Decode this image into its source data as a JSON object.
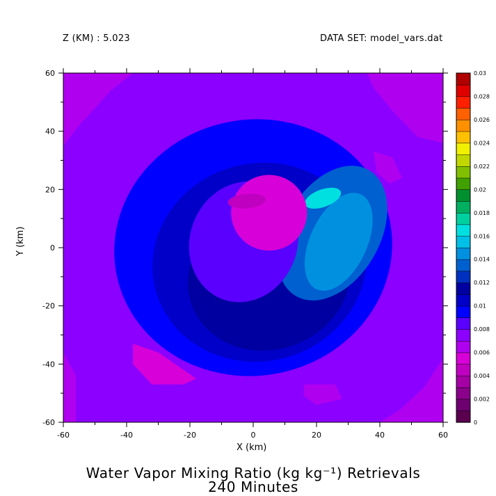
{
  "header": {
    "z_label": "Z (KM) : 5.023",
    "dataset_label": "DATA SET: model_vars.dat"
  },
  "title": {
    "line1": "Water Vapor Mixing Ratio (kg kg⁻¹) Retrievals",
    "line2": "240 Minutes"
  },
  "chart_data": {
    "type": "heatmap",
    "title": "Water Vapor Mixing Ratio (kg kg⁻¹) Retrievals 240 Minutes",
    "xlabel": "X (km)",
    "ylabel": "Y (km)",
    "xlim": [
      -60,
      60
    ],
    "ylim": [
      -60,
      60
    ],
    "x_ticks": [
      "-60",
      "-40",
      "-20",
      "0",
      "20",
      "40",
      "60"
    ],
    "y_ticks": [
      "-60",
      "-40",
      "-20",
      "0",
      "20",
      "40",
      "60"
    ],
    "x_tick_values": [
      -60,
      -40,
      -20,
      0,
      20,
      40,
      60
    ],
    "y_tick_values": [
      -60,
      -40,
      -20,
      0,
      20,
      40,
      60
    ],
    "colorbar": {
      "levels": [
        0,
        0.001,
        0.002,
        0.003,
        0.004,
        0.005,
        0.006,
        0.007,
        0.008,
        0.009,
        0.01,
        0.011,
        0.012,
        0.013,
        0.014,
        0.015,
        0.016,
        0.017,
        0.018,
        0.019,
        0.02,
        0.021,
        0.022,
        0.023,
        0.024,
        0.025,
        0.026,
        0.027,
        0.028,
        0.029,
        0.03
      ],
      "labels": [
        "0",
        "0.002",
        "0.004",
        "0.006",
        "0.008",
        "0.01",
        "0.012",
        "0.014",
        "0.016",
        "0.018",
        "0.02",
        "0.022",
        "0.024",
        "0.026",
        "0.028",
        "0.03"
      ],
      "label_values": [
        0,
        0.002,
        0.004,
        0.006,
        0.008,
        0.01,
        0.012,
        0.014,
        0.016,
        0.018,
        0.02,
        0.022,
        0.024,
        0.026,
        0.028,
        0.03
      ],
      "colors": [
        "#5a004f",
        "#6e0070",
        "#8a008a",
        "#a500a5",
        "#c000c0",
        "#d800d8",
        "#b000f0",
        "#8c00ff",
        "#5a00ff",
        "#0000ff",
        "#0000c8",
        "#0000a0",
        "#0030c0",
        "#0060d0",
        "#0090e0",
        "#00c0e8",
        "#00e0e0",
        "#00d0a0",
        "#00b060",
        "#009030",
        "#40a000",
        "#80c000",
        "#c0d800",
        "#f0f000",
        "#ffc000",
        "#ff9000",
        "#ff6000",
        "#ff2000",
        "#e00000",
        "#b00000",
        "#800000"
      ]
    },
    "field_features": [
      {
        "feature": "background",
        "value": 0.0078
      },
      {
        "feature": "corner-nw",
        "x": -55,
        "y": 55,
        "value": 0.0068
      },
      {
        "feature": "corner-ne",
        "x": 55,
        "y": 52,
        "value": 0.0068
      },
      {
        "feature": "corner-sw",
        "x": -58,
        "y": -50,
        "value": 0.0068
      },
      {
        "feature": "patch-sw",
        "x": -30,
        "y": -45,
        "value": 0.0058
      },
      {
        "feature": "corner-se",
        "x": 55,
        "y": -55,
        "value": 0.0068
      },
      {
        "feature": "spot-east",
        "x": 42,
        "y": 28,
        "value": 0.0068
      },
      {
        "feature": "spot-south",
        "x": 22,
        "y": -50,
        "value": 0.0068
      },
      {
        "feature": "outer-ring",
        "x": 0,
        "y": 0,
        "value": 0.0091
      },
      {
        "feature": "middle-ring",
        "x": 2,
        "y": -5,
        "value": 0.0101
      },
      {
        "feature": "inner-ring",
        "x": 5,
        "y": -10,
        "value": 0.0115
      },
      {
        "feature": "core-left",
        "x": -3,
        "y": 2,
        "value": 0.0085
      },
      {
        "feature": "dry-core-max",
        "x": 5,
        "y": 12,
        "value": 0.0058
      },
      {
        "feature": "dry-core-min",
        "x": -2,
        "y": 16,
        "value": 0.0045
      },
      {
        "feature": "moist-band",
        "x": 25,
        "y": 5,
        "value": 0.013
      },
      {
        "feature": "moist-band-inner",
        "x": 27,
        "y": 2,
        "value": 0.0145
      },
      {
        "feature": "moist-max",
        "x": 22,
        "y": 17,
        "value": 0.0162
      }
    ]
  }
}
